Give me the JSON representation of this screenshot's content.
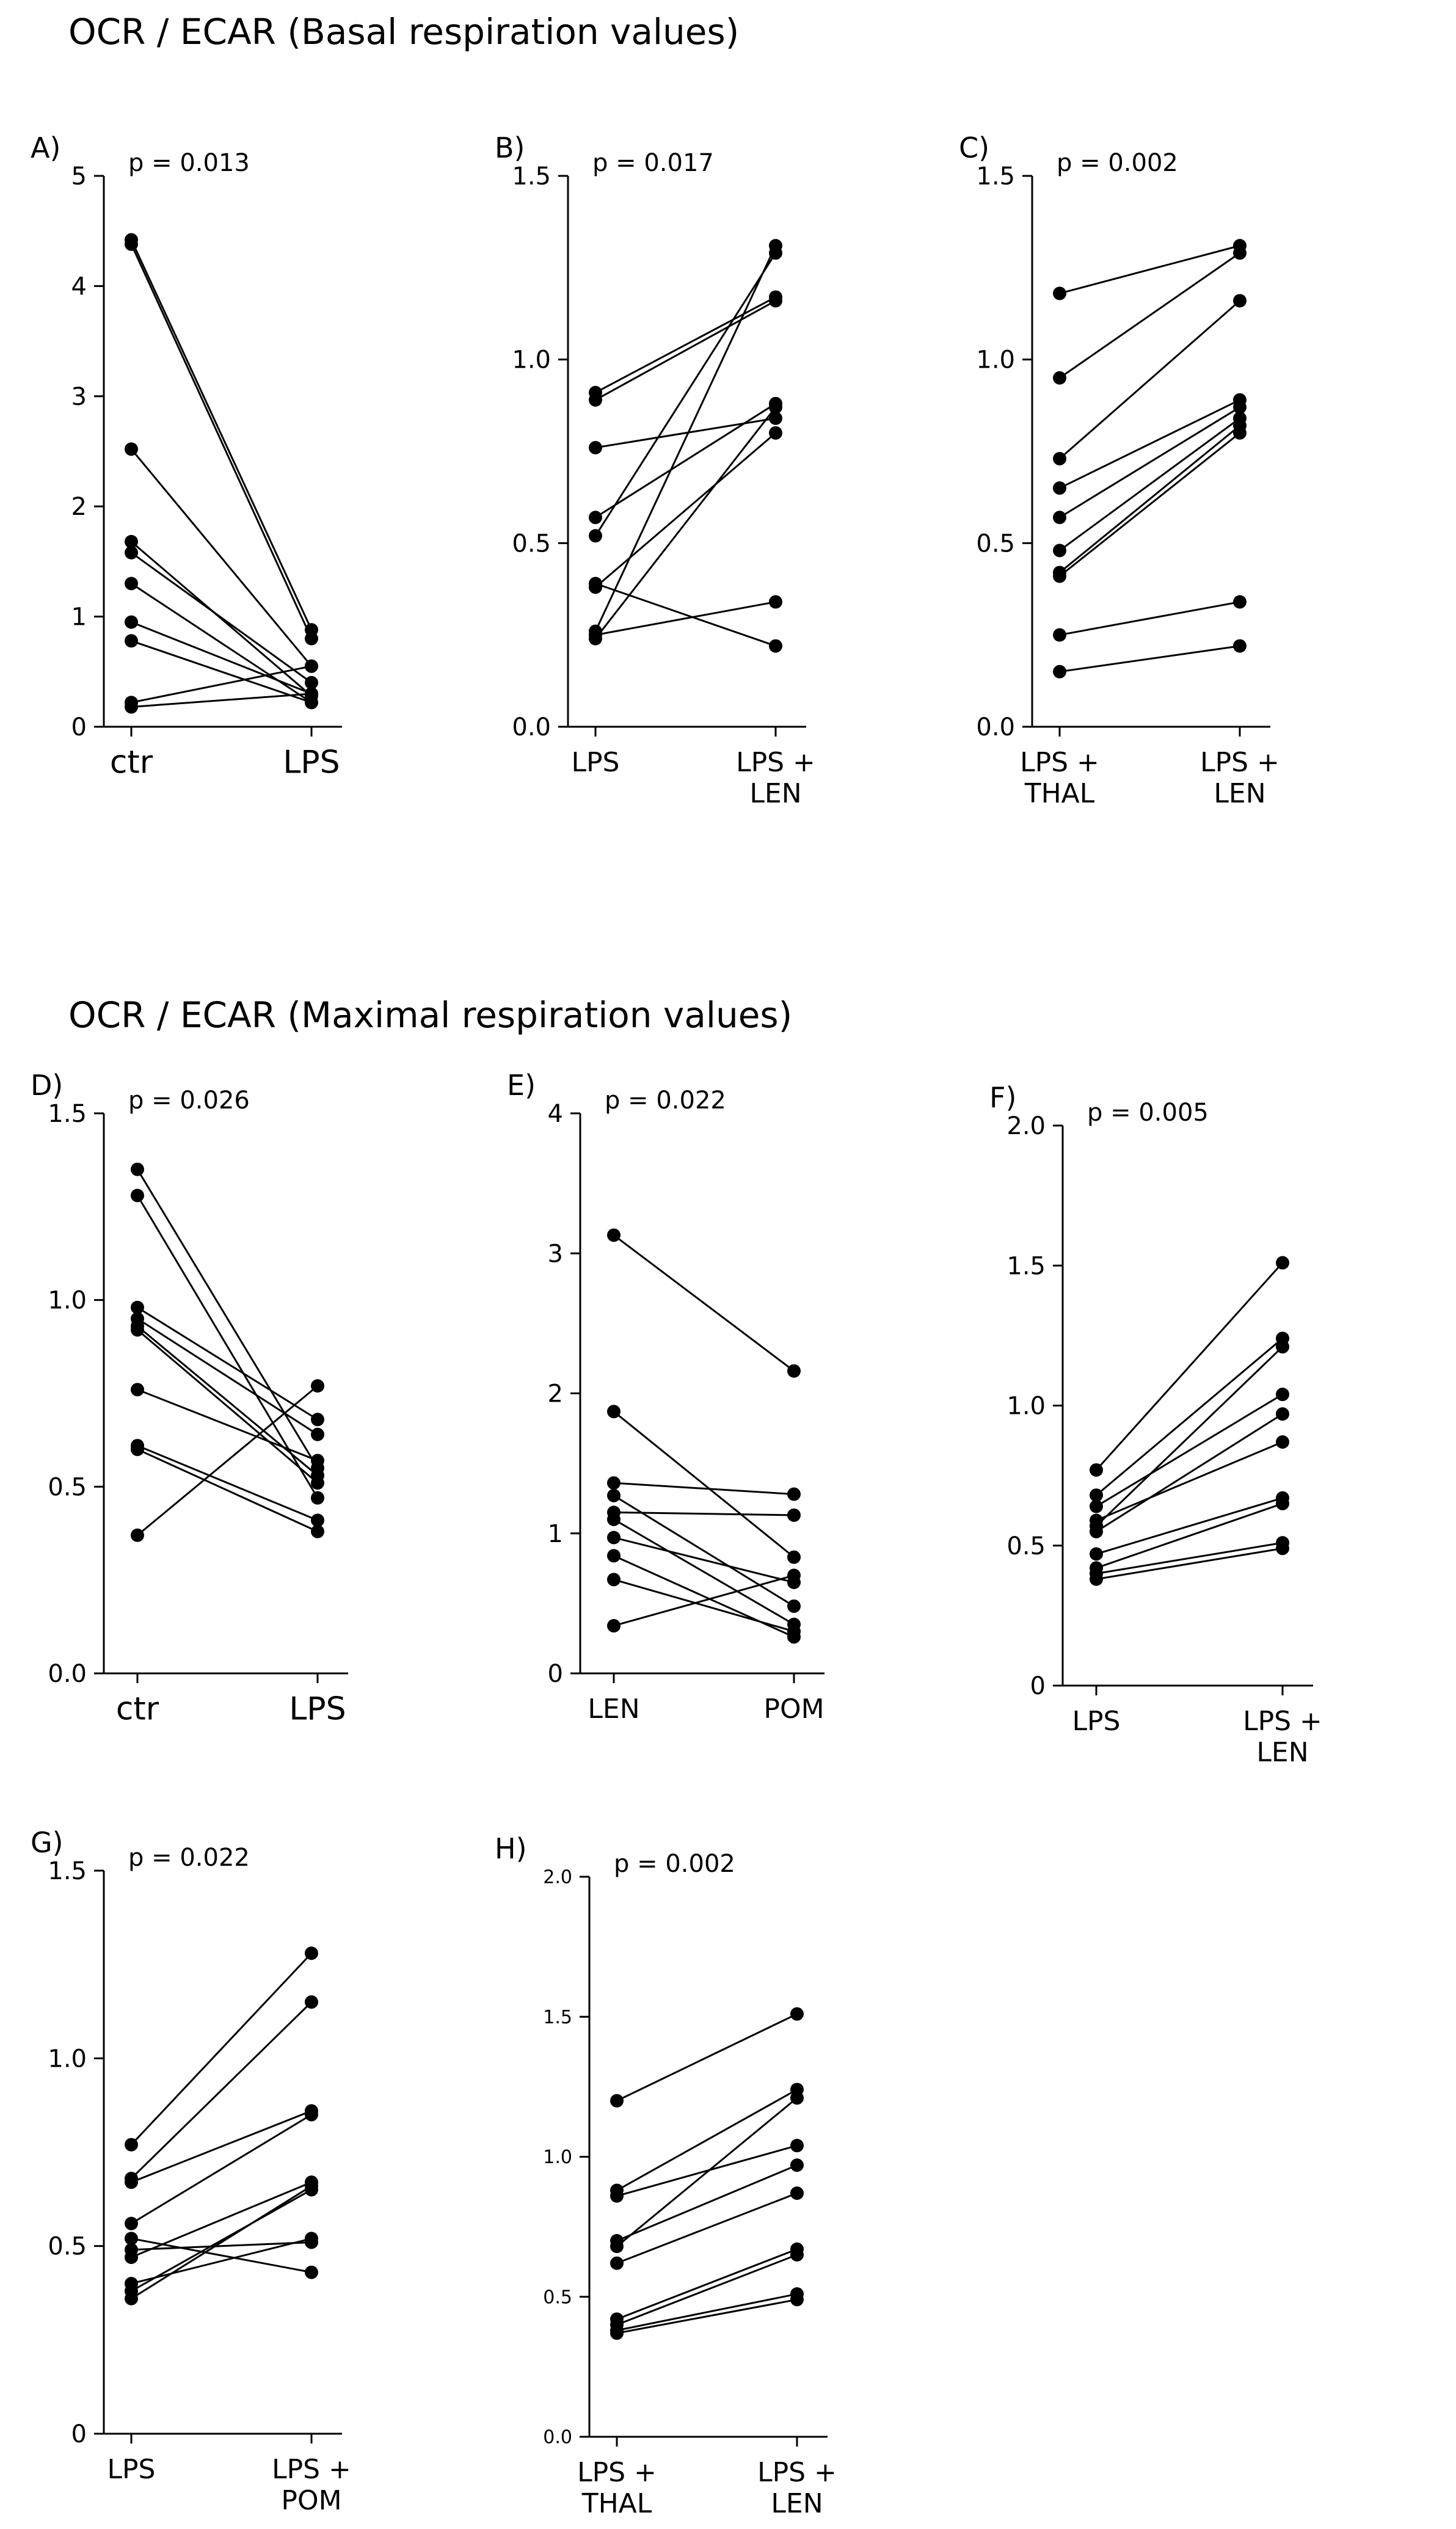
{
  "section_titles": {
    "basal": "OCR / ECAR (Basal respiration values)",
    "maximal": "OCR / ECAR (Maximal respiration values)"
  },
  "chart_data": [
    {
      "panel": "A)",
      "type": "line",
      "section": "basal",
      "p_value": "p = 0.013",
      "categories": [
        "ctr",
        "LPS"
      ],
      "ylim": [
        0,
        5
      ],
      "yticks": [
        0,
        1,
        2,
        3,
        4,
        5
      ],
      "ytick_labels": [
        "0",
        "1",
        "2",
        "3",
        "4",
        "5"
      ],
      "pairs": [
        [
          4.42,
          0.88
        ],
        [
          4.38,
          0.8
        ],
        [
          2.52,
          0.55
        ],
        [
          1.68,
          0.28
        ],
        [
          1.58,
          0.4
        ],
        [
          1.3,
          0.22
        ],
        [
          0.95,
          0.3
        ],
        [
          0.78,
          0.22
        ],
        [
          0.22,
          0.55
        ],
        [
          0.18,
          0.3
        ]
      ]
    },
    {
      "panel": "B)",
      "type": "line",
      "section": "basal",
      "p_value": "p = 0.017",
      "categories": [
        "LPS",
        "LPS +\nLEN"
      ],
      "ylim": [
        0,
        1.5
      ],
      "yticks": [
        0,
        0.5,
        1.0,
        1.5
      ],
      "ytick_labels": [
        "0.0",
        "0.5",
        "1.0",
        "1.5"
      ],
      "pairs": [
        [
          0.91,
          1.17
        ],
        [
          0.89,
          1.16
        ],
        [
          0.76,
          0.84
        ],
        [
          0.57,
          0.88
        ],
        [
          0.52,
          1.29
        ],
        [
          0.39,
          0.22
        ],
        [
          0.38,
          0.8
        ],
        [
          0.26,
          1.31
        ],
        [
          0.25,
          0.34
        ],
        [
          0.24,
          0.87
        ]
      ]
    },
    {
      "panel": "C)",
      "type": "line",
      "section": "basal",
      "p_value": "p = 0.002",
      "categories": [
        "LPS +\nTHAL",
        "LPS +\nLEN"
      ],
      "ylim": [
        0,
        1.5
      ],
      "yticks": [
        0,
        0.5,
        1.0,
        1.5
      ],
      "ytick_labels": [
        "0.0",
        "0.5",
        "1.0",
        "1.5"
      ],
      "pairs": [
        [
          1.18,
          1.31
        ],
        [
          0.95,
          1.29
        ],
        [
          0.73,
          1.16
        ],
        [
          0.65,
          0.89
        ],
        [
          0.57,
          0.87
        ],
        [
          0.48,
          0.84
        ],
        [
          0.42,
          0.82
        ],
        [
          0.41,
          0.8
        ],
        [
          0.25,
          0.34
        ],
        [
          0.15,
          0.22
        ]
      ]
    },
    {
      "panel": "D)",
      "type": "line",
      "section": "maximal",
      "p_value": "p = 0.026",
      "categories": [
        "ctr",
        "LPS"
      ],
      "ylim": [
        0,
        1.5
      ],
      "yticks": [
        0,
        0.5,
        1.0,
        1.5
      ],
      "ytick_labels": [
        "0.0",
        "0.5",
        "1.0",
        "1.5"
      ],
      "pairs": [
        [
          1.35,
          0.55
        ],
        [
          1.28,
          0.47
        ],
        [
          0.98,
          0.68
        ],
        [
          0.95,
          0.64
        ],
        [
          0.93,
          0.53
        ],
        [
          0.92,
          0.51
        ],
        [
          0.76,
          0.57
        ],
        [
          0.61,
          0.41
        ],
        [
          0.6,
          0.38
        ],
        [
          0.37,
          0.77
        ]
      ]
    },
    {
      "panel": "E)",
      "type": "line",
      "section": "maximal",
      "p_value": "p = 0.022",
      "categories": [
        "LEN",
        "POM"
      ],
      "ylim": [
        0,
        4
      ],
      "yticks": [
        0,
        1,
        2,
        3,
        4
      ],
      "ytick_labels": [
        "0",
        "1",
        "2",
        "3",
        "4"
      ],
      "pairs": [
        [
          3.13,
          2.16
        ],
        [
          1.87,
          0.83
        ],
        [
          1.36,
          1.28
        ],
        [
          1.27,
          0.48
        ],
        [
          1.15,
          1.13
        ],
        [
          1.1,
          0.35
        ],
        [
          0.97,
          0.65
        ],
        [
          0.84,
          0.26
        ],
        [
          0.67,
          0.3
        ],
        [
          0.34,
          0.7
        ]
      ]
    },
    {
      "panel": "F)",
      "type": "line",
      "section": "maximal",
      "p_value": "p = 0.005",
      "categories": [
        "LPS",
        "LPS +\nLEN"
      ],
      "ylim": [
        0,
        2.0
      ],
      "yticks": [
        0,
        0.5,
        1.0,
        1.5,
        2.0
      ],
      "ytick_labels": [
        "0",
        "0.5",
        "1.0",
        "1.5",
        "2.0"
      ],
      "pairs": [
        [
          0.77,
          1.51
        ],
        [
          0.68,
          1.24
        ],
        [
          0.64,
          1.04
        ],
        [
          0.59,
          0.87
        ],
        [
          0.57,
          1.21
        ],
        [
          0.55,
          0.97
        ],
        [
          0.47,
          0.67
        ],
        [
          0.42,
          0.65
        ],
        [
          0.4,
          0.51
        ],
        [
          0.38,
          0.49
        ]
      ]
    },
    {
      "panel": "G)",
      "type": "line",
      "section": "maximal",
      "p_value": "p = 0.022",
      "categories": [
        "LPS",
        "LPS +\nPOM"
      ],
      "ylim": [
        0,
        1.5
      ],
      "yticks": [
        0,
        0.5,
        1.0,
        1.5
      ],
      "ytick_labels": [
        "0",
        "0.5",
        "1.0",
        "1.5"
      ],
      "pairs": [
        [
          0.77,
          1.28
        ],
        [
          0.68,
          1.15
        ],
        [
          0.67,
          0.86
        ],
        [
          0.56,
          0.85
        ],
        [
          0.52,
          0.43
        ],
        [
          0.49,
          0.51
        ],
        [
          0.47,
          0.67
        ],
        [
          0.4,
          0.52
        ],
        [
          0.38,
          0.65
        ],
        [
          0.36,
          0.66
        ]
      ]
    },
    {
      "panel": "H)",
      "type": "line",
      "section": "maximal",
      "p_value": "p = 0.002",
      "categories": [
        "LPS +\nTHAL",
        "LPS +\nLEN"
      ],
      "ylim": [
        0,
        2.0
      ],
      "yticks": [
        0,
        0.5,
        1.0,
        1.5,
        2.0
      ],
      "ytick_labels": [
        "0.0",
        "0.5",
        "1.0",
        "1.5",
        "2.0"
      ],
      "pairs": [
        [
          1.2,
          1.51
        ],
        [
          0.88,
          1.24
        ],
        [
          0.86,
          1.04
        ],
        [
          0.7,
          0.97
        ],
        [
          0.68,
          1.21
        ],
        [
          0.62,
          0.87
        ],
        [
          0.42,
          0.67
        ],
        [
          0.4,
          0.65
        ],
        [
          0.38,
          0.51
        ],
        [
          0.37,
          0.49
        ]
      ]
    }
  ]
}
